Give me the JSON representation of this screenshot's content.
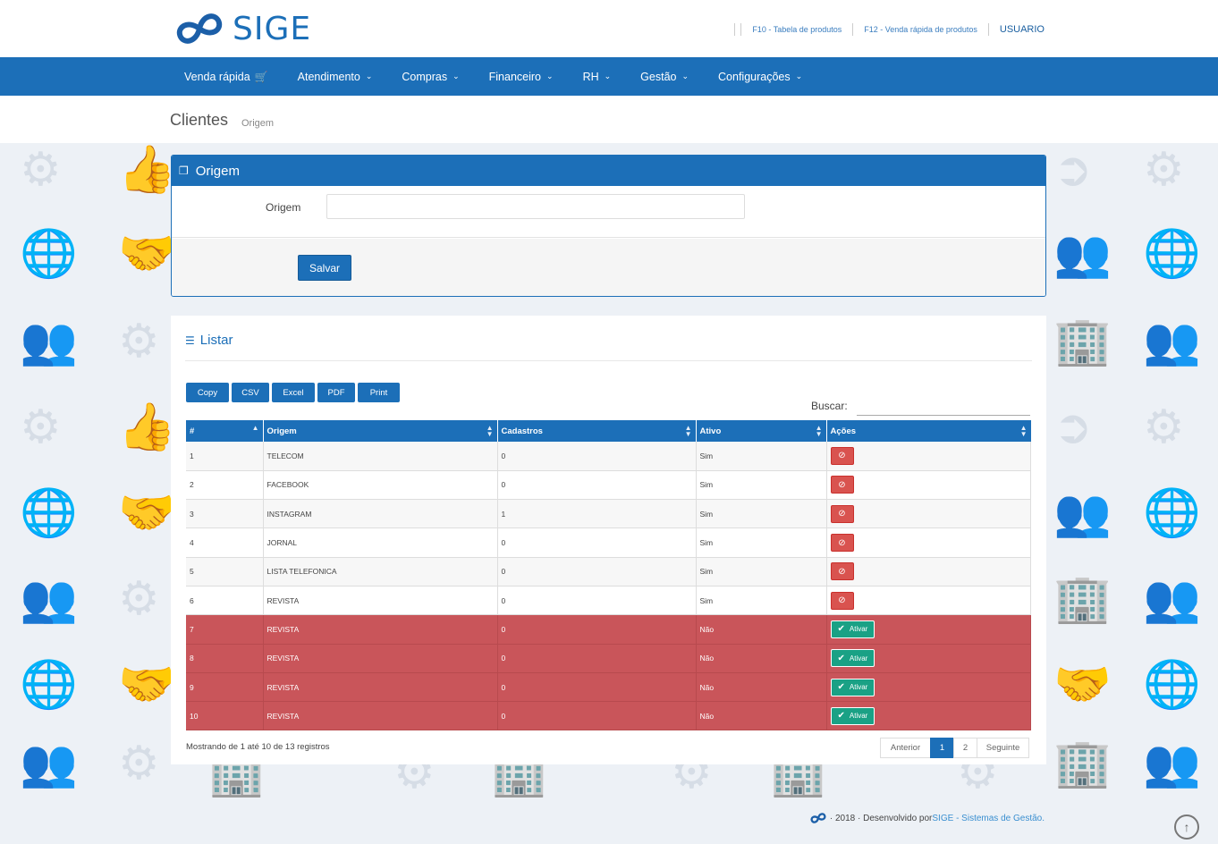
{
  "header": {
    "logo_text": "SIGE",
    "links": [
      {
        "label": "F10 - Tabela de produtos"
      },
      {
        "label": "F12 - Venda rápida de produtos"
      }
    ],
    "user_label": "USUARIO"
  },
  "nav": {
    "items": [
      {
        "label": "Venda rápida"
      },
      {
        "label": "Atendimento"
      },
      {
        "label": "Compras"
      },
      {
        "label": "Financeiro"
      },
      {
        "label": "RH"
      },
      {
        "label": "Gestão"
      },
      {
        "label": "Configurações"
      }
    ]
  },
  "page": {
    "title": "Clientes",
    "subtitle": "Origem"
  },
  "form": {
    "panel_title": "Origem",
    "field_label": "Origem",
    "field_value": "",
    "save_label": "Salvar"
  },
  "list": {
    "title": "Listar",
    "export": [
      "Copy",
      "CSV",
      "Excel",
      "PDF",
      "Print"
    ],
    "search_label": "Buscar:",
    "search_value": "",
    "columns": [
      "#",
      "Origem",
      "Cadastros",
      "Ativo",
      "Ações"
    ],
    "rows": [
      {
        "id": "1",
        "origem": "TELECOM",
        "cadastros": "0",
        "ativo": "Sim"
      },
      {
        "id": "2",
        "origem": "FACEBOOK",
        "cadastros": "0",
        "ativo": "Sim"
      },
      {
        "id": "3",
        "origem": "INSTAGRAM",
        "cadastros": "1",
        "ativo": "Sim"
      },
      {
        "id": "4",
        "origem": "JORNAL",
        "cadastros": "0",
        "ativo": "Sim"
      },
      {
        "id": "5",
        "origem": "LISTA TELEFONICA",
        "cadastros": "0",
        "ativo": "Sim"
      },
      {
        "id": "6",
        "origem": "REVISTA",
        "cadastros": "0",
        "ativo": "Sim"
      },
      {
        "id": "7",
        "origem": "REVISTA",
        "cadastros": "0",
        "ativo": "Não"
      },
      {
        "id": "8",
        "origem": "REVISTA",
        "cadastros": "0",
        "ativo": "Não"
      },
      {
        "id": "9",
        "origem": "REVISTA",
        "cadastros": "0",
        "ativo": "Não"
      },
      {
        "id": "10",
        "origem": "REVISTA",
        "cadastros": "0",
        "ativo": "Não"
      }
    ],
    "activate_label": "Ativar",
    "info": "Mostrando de 1 até 10 de 13 registros",
    "pager": {
      "prev": "Anterior",
      "pages": [
        "1",
        "2"
      ],
      "next": "Seguinte"
    }
  },
  "footer": {
    "text": "· 2018 · Desenvolvido por ",
    "brand": "SIGE - Sistemas de Gestão."
  },
  "colors": {
    "primary": "#1c6fb8",
    "inactive_row": "#c9555a",
    "danger": "#d9534f",
    "success": "#1aa185"
  }
}
